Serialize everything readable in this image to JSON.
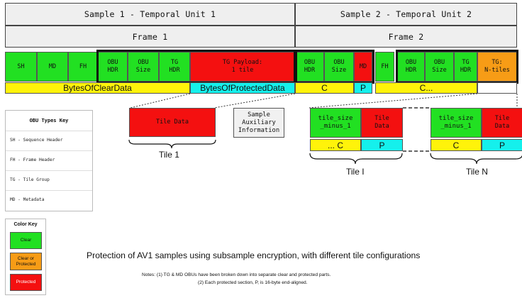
{
  "headers": {
    "sample1": "Sample 1 - Temporal Unit 1",
    "sample2": "Sample 2 - Temporal Unit 2",
    "frame1": "Frame 1",
    "frame2": "Frame 2"
  },
  "obu_row": {
    "sh": "SH",
    "md": "MD",
    "fh": "FH",
    "obu_hdr": "OBU\nHDR",
    "obu_size": "OBU\nSize",
    "tg_hdr": "TG\nHDR",
    "tg_payload": "TG Payload:\n1 tile",
    "md2": "MD",
    "fh2": "FH",
    "tg_ntiles": "TG:\nN-tiles"
  },
  "data_row": {
    "clear": "BytesOfClearData",
    "protected": "BytesOfProtectedData",
    "c": "C",
    "p": "P",
    "c_more": "C..."
  },
  "tile1": {
    "data": "Tile Data",
    "label": "Tile 1"
  },
  "aux": "Sample\nAuxiliary\nInformation",
  "tile_i": {
    "size": "tile_size\n_minus_1",
    "data": "Tile\nData",
    "c": "... C",
    "p": "P",
    "label": "Tile I"
  },
  "tile_n": {
    "size": "tile_size\n_minus_1",
    "data": "Tile\nData",
    "c": "C",
    "p": "P",
    "label": "Tile N"
  },
  "obu_key": {
    "title": "OBU Types Key",
    "items": [
      "SH - Sequence Header",
      "FH - Frame Header",
      "TG - Tile Group",
      "MD - Metadata"
    ]
  },
  "color_key": {
    "title": "Color Key",
    "clear": "Clear",
    "clear_or_protected": "Clear or\nProtected",
    "protected": "Protected"
  },
  "caption": "Protection of AV1 samples using subsample encryption, with different tile configurations",
  "notes": {
    "line1": "Notes: (1) TG & MD OBUs have been broken down into separate clear and protected parts.",
    "line2": "(2) Each protected section, P, is 16-byte end-aligned."
  },
  "colors": {
    "clear": "#22e022",
    "protected": "#f41010",
    "clear_or_protected": "#f79c16",
    "bytes_clear": "#fff30a",
    "bytes_protected": "#15f0ec"
  }
}
